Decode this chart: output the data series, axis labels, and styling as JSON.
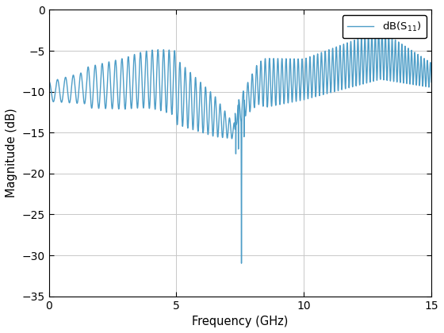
{
  "xlabel": "Frequency (GHz)",
  "ylabel": "Magnitude (dB)",
  "legend_label": "dB(S_{11})",
  "xlim": [
    0,
    15
  ],
  "ylim": [
    -35,
    0
  ],
  "xticks": [
    0,
    5,
    10,
    15
  ],
  "yticks": [
    0,
    -5,
    -10,
    -15,
    -20,
    -25,
    -30,
    -35
  ],
  "line_color": "#4d9dc7",
  "line_width": 1.0,
  "grid_color": "#c8c8c8",
  "bg_color": "#ffffff",
  "notch_freq": 7.55,
  "notch_depth": -31.0,
  "base_level": -10.0,
  "fig_width": 5.6,
  "fig_height": 4.2,
  "dpi": 100
}
